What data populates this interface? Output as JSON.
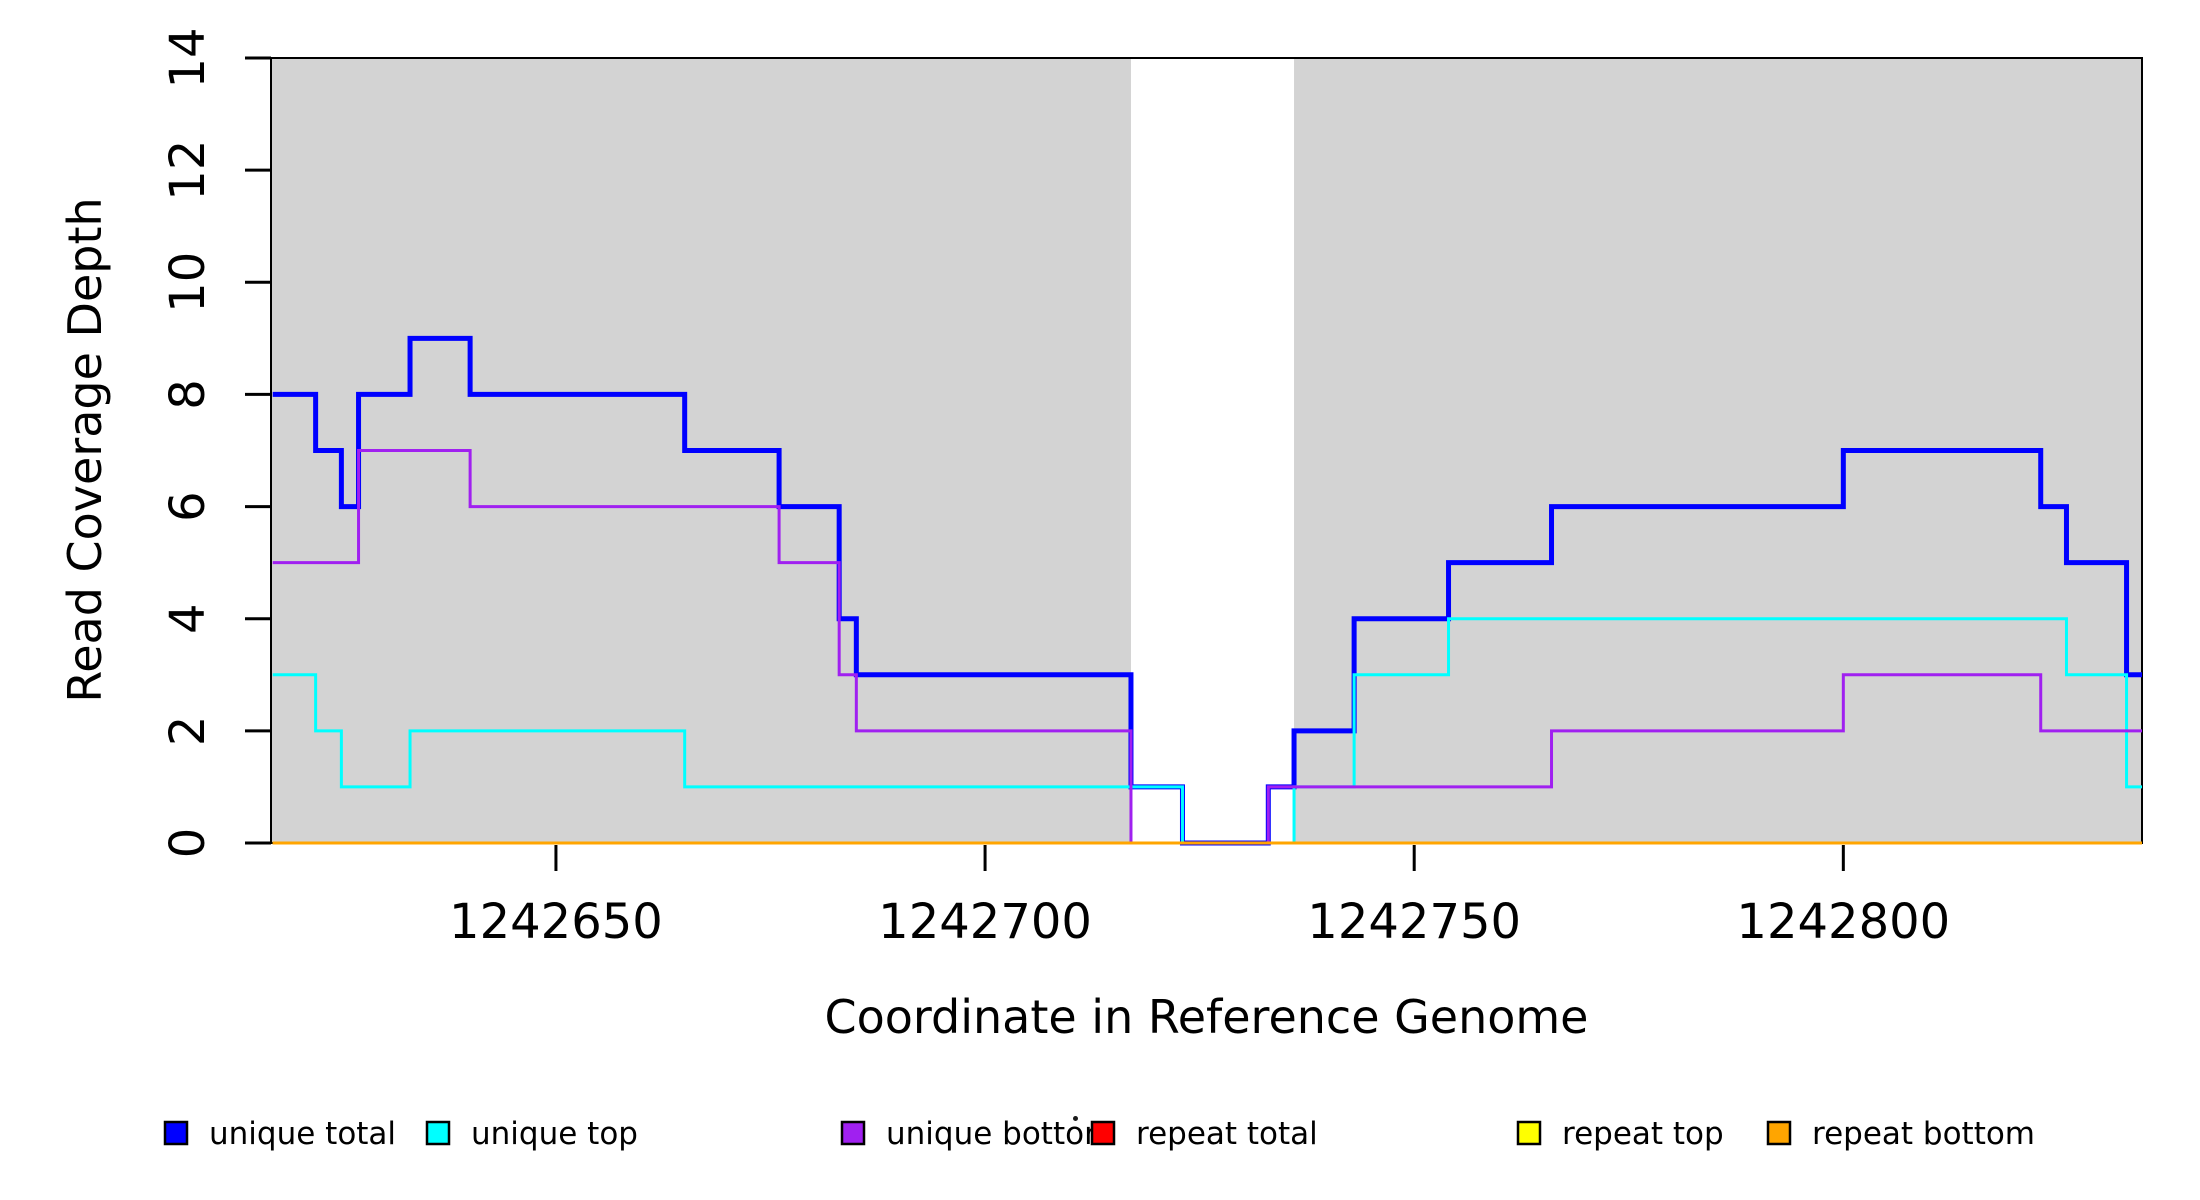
{
  "chart_data": {
    "type": "line",
    "subtype": "step-post-coverage",
    "title": "",
    "xlabel": "Coordinate in Reference Genome",
    "ylabel": "Read Coverage Depth",
    "xlim": [
      1242616.8,
      1242834.8
    ],
    "ylim": [
      0,
      14
    ],
    "x_ticks": [
      1242650,
      1242700,
      1242750,
      1242800
    ],
    "y_ticks": [
      0,
      2,
      4,
      6,
      8,
      10,
      12,
      14
    ],
    "grid": "off",
    "legend_position": "bottom",
    "shade_color": "#D3D3D3",
    "frame_color": "#000000",
    "shaded_regions": [
      {
        "from": 1242616.8,
        "to": 1242717
      },
      {
        "from": 1242736,
        "to": 1242834.8
      }
    ],
    "series": [
      {
        "name": "unique total",
        "color": "#0000FF",
        "width": 5,
        "x": [
          1242617,
          1242622,
          1242625,
          1242627,
          1242633,
          1242640,
          1242665,
          1242676,
          1242683,
          1242685,
          1242717,
          1242723,
          1242733,
          1242736,
          1242743,
          1242754,
          1242766,
          1242800,
          1242823,
          1242826,
          1242833
        ],
        "y": [
          8,
          7,
          6,
          8,
          9,
          8,
          7,
          6,
          4,
          3,
          1,
          0,
          1,
          2,
          4,
          5,
          6,
          7,
          6,
          5,
          3
        ]
      },
      {
        "name": "unique top",
        "color": "#00FFFF",
        "width": 3,
        "x": [
          1242617,
          1242622,
          1242625,
          1242633,
          1242665,
          1242723,
          1242736,
          1242743,
          1242754,
          1242826,
          1242833
        ],
        "y": [
          3,
          2,
          1,
          2,
          1,
          0,
          1,
          3,
          4,
          3,
          1
        ]
      },
      {
        "name": "unique bottom",
        "color": "#A020F0",
        "width": 3,
        "x": [
          1242617,
          1242627,
          1242640,
          1242676,
          1242683,
          1242685,
          1242717,
          1242733,
          1242766,
          1242800,
          1242823
        ],
        "y": [
          5,
          7,
          6,
          5,
          3,
          2,
          0,
          1,
          2,
          3,
          2
        ]
      },
      {
        "name": "repeat total",
        "color": "#FF0000",
        "width": 3,
        "x": [
          1242617
        ],
        "y": [
          0
        ]
      },
      {
        "name": "repeat top",
        "color": "#FFFF00",
        "width": 3,
        "x": [
          1242617
        ],
        "y": [
          0
        ]
      },
      {
        "name": "repeat bottom",
        "color": "#FFA500",
        "width": 3,
        "x": [
          1242617
        ],
        "y": [
          0
        ]
      }
    ],
    "legend_entries": [
      "unique total",
      "unique top",
      "unique bottom",
      "repeat total",
      "repeat top",
      "repeat bottom"
    ]
  }
}
